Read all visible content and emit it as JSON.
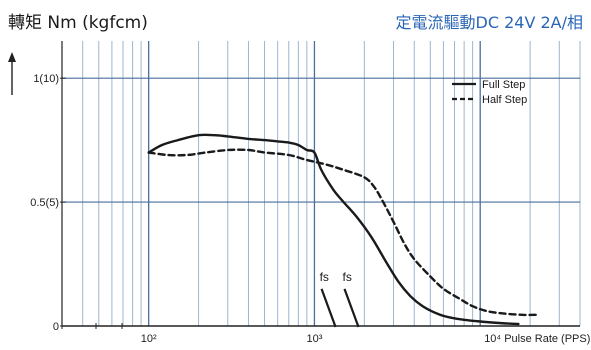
{
  "chart_data": {
    "type": "line",
    "title_left": "轉矩 Nm (kgfcm)",
    "title_right": "定電流驅動DC 24V 2A/相",
    "xlabel": "Pulse Rate (PPS)",
    "x_scale": "log",
    "xlim": [
      30,
      40000
    ],
    "ylim": [
      0,
      1.15
    ],
    "y_ticks": [
      {
        "value": 0,
        "label": "0"
      },
      {
        "value": 0.5,
        "label": "0.5(5)"
      },
      {
        "value": 1.0,
        "label": "1(10)"
      }
    ],
    "x_ticks": [
      {
        "value": 100,
        "label": "10²"
      },
      {
        "value": 1000,
        "label": "10³"
      },
      {
        "value": 10000,
        "label": "10⁴"
      }
    ],
    "grid": true,
    "legend_position": "top-right",
    "series": [
      {
        "name": "Full Step",
        "style": "solid",
        "color": "#1a1a1a",
        "x": [
          100,
          120,
          150,
          200,
          250,
          300,
          400,
          500,
          600,
          700,
          800,
          900,
          1000,
          1100,
          1300,
          1500,
          1800,
          2200,
          2700,
          3200,
          3800,
          4500,
          5500,
          6500,
          8000,
          10000,
          13000,
          17000
        ],
        "y": [
          0.7,
          0.73,
          0.75,
          0.77,
          0.77,
          0.765,
          0.755,
          0.75,
          0.745,
          0.74,
          0.73,
          0.71,
          0.7,
          0.63,
          0.55,
          0.5,
          0.44,
          0.36,
          0.26,
          0.18,
          0.12,
          0.08,
          0.05,
          0.035,
          0.025,
          0.018,
          0.012,
          0.008
        ]
      },
      {
        "name": "Half Step",
        "style": "dashed",
        "color": "#1a1a1a",
        "x": [
          100,
          130,
          170,
          220,
          300,
          400,
          500,
          700,
          900,
          1200,
          1500,
          2000,
          2300,
          2600,
          3000,
          3500,
          4000,
          5000,
          6000,
          7500,
          9000,
          11000,
          14000,
          18000,
          22000
        ],
        "y": [
          0.7,
          0.69,
          0.69,
          0.7,
          0.71,
          0.71,
          0.7,
          0.69,
          0.67,
          0.65,
          0.63,
          0.6,
          0.56,
          0.5,
          0.42,
          0.33,
          0.27,
          0.2,
          0.15,
          0.11,
          0.08,
          0.06,
          0.05,
          0.045,
          0.045
        ]
      }
    ],
    "annotations": [
      {
        "text": "fs",
        "x": 1200,
        "y": 0.15
      },
      {
        "text": "fs",
        "x": 1650,
        "y": 0.15
      }
    ]
  }
}
